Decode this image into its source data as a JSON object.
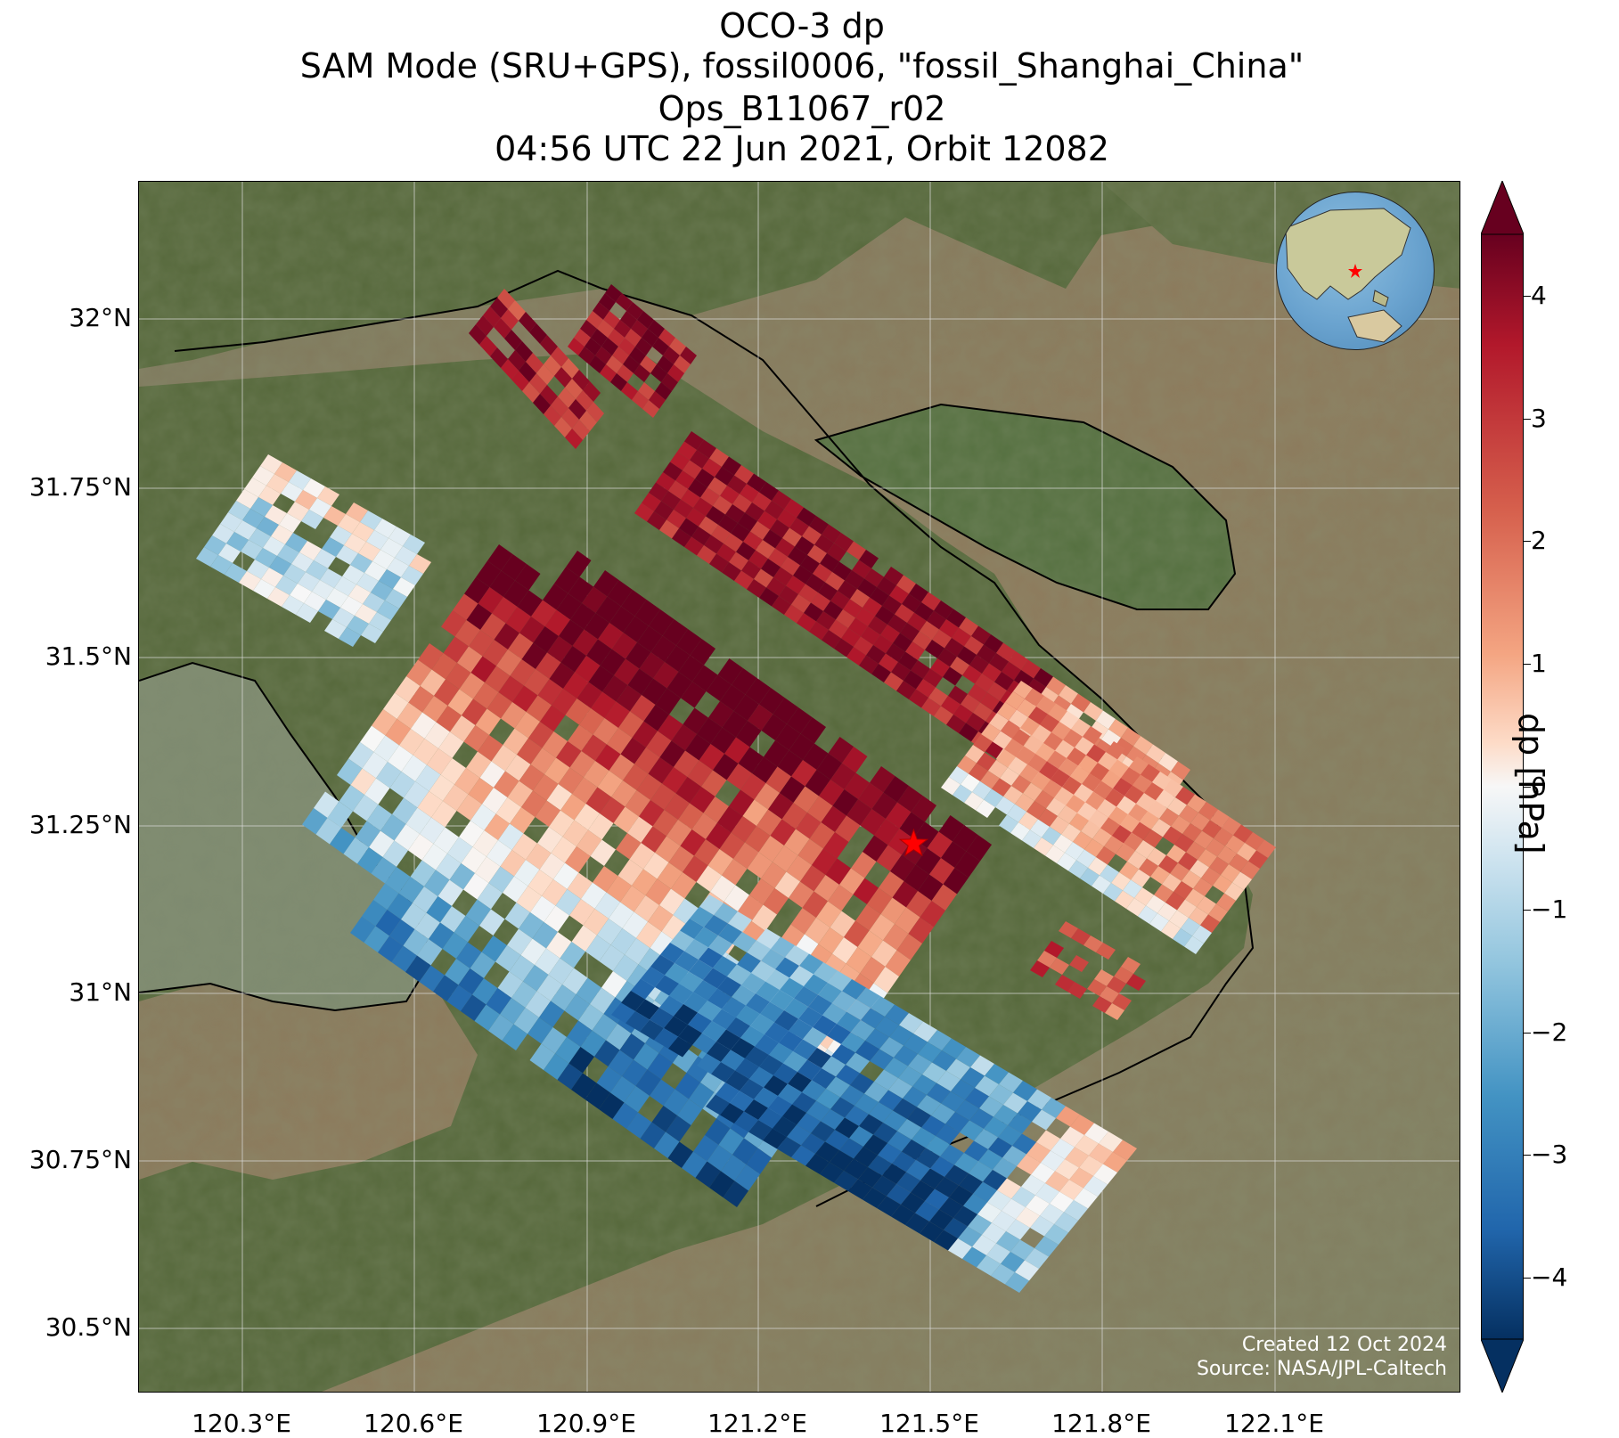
{
  "titles": {
    "line1": "OCO-3 dp",
    "line2": "SAM Mode (SRU+GPS), fossil0006, \"fossil_Shanghai_China\"",
    "line3": "Ops_B11067_r02",
    "line4": "04:56 UTC 22 Jun 2021, Orbit 12082"
  },
  "axes": {
    "lat_ticks": [
      "32°N",
      "31.75°N",
      "31.5°N",
      "31.25°N",
      "31°N",
      "30.75°N",
      "30.5°N"
    ],
    "lon_ticks": [
      "120.3°E",
      "120.6°E",
      "120.9°E",
      "121.2°E",
      "121.5°E",
      "121.8°E",
      "122.1°E"
    ]
  },
  "colorbar": {
    "label": "dp [hPa]",
    "ticks": [
      "4",
      "3",
      "2",
      "1",
      "0",
      "−1",
      "−2",
      "−3",
      "−4"
    ],
    "range": [
      -4.5,
      4.5
    ],
    "extend": "both",
    "colormap": "RdBu_r"
  },
  "credits": {
    "created": "Created 12 Oct 2024",
    "source": "Source: NASA/JPL-Caltech"
  },
  "target": {
    "lon": 121.47,
    "lat": 31.22,
    "marker": "star",
    "color": "#ff0000"
  },
  "map": {
    "extent_lon": [
      120.0,
      122.3
    ],
    "extent_lat": [
      30.4,
      31.9
    ],
    "land_color": "#5b6b3e",
    "water_color": "#8a7a5c",
    "grid": true
  }
}
